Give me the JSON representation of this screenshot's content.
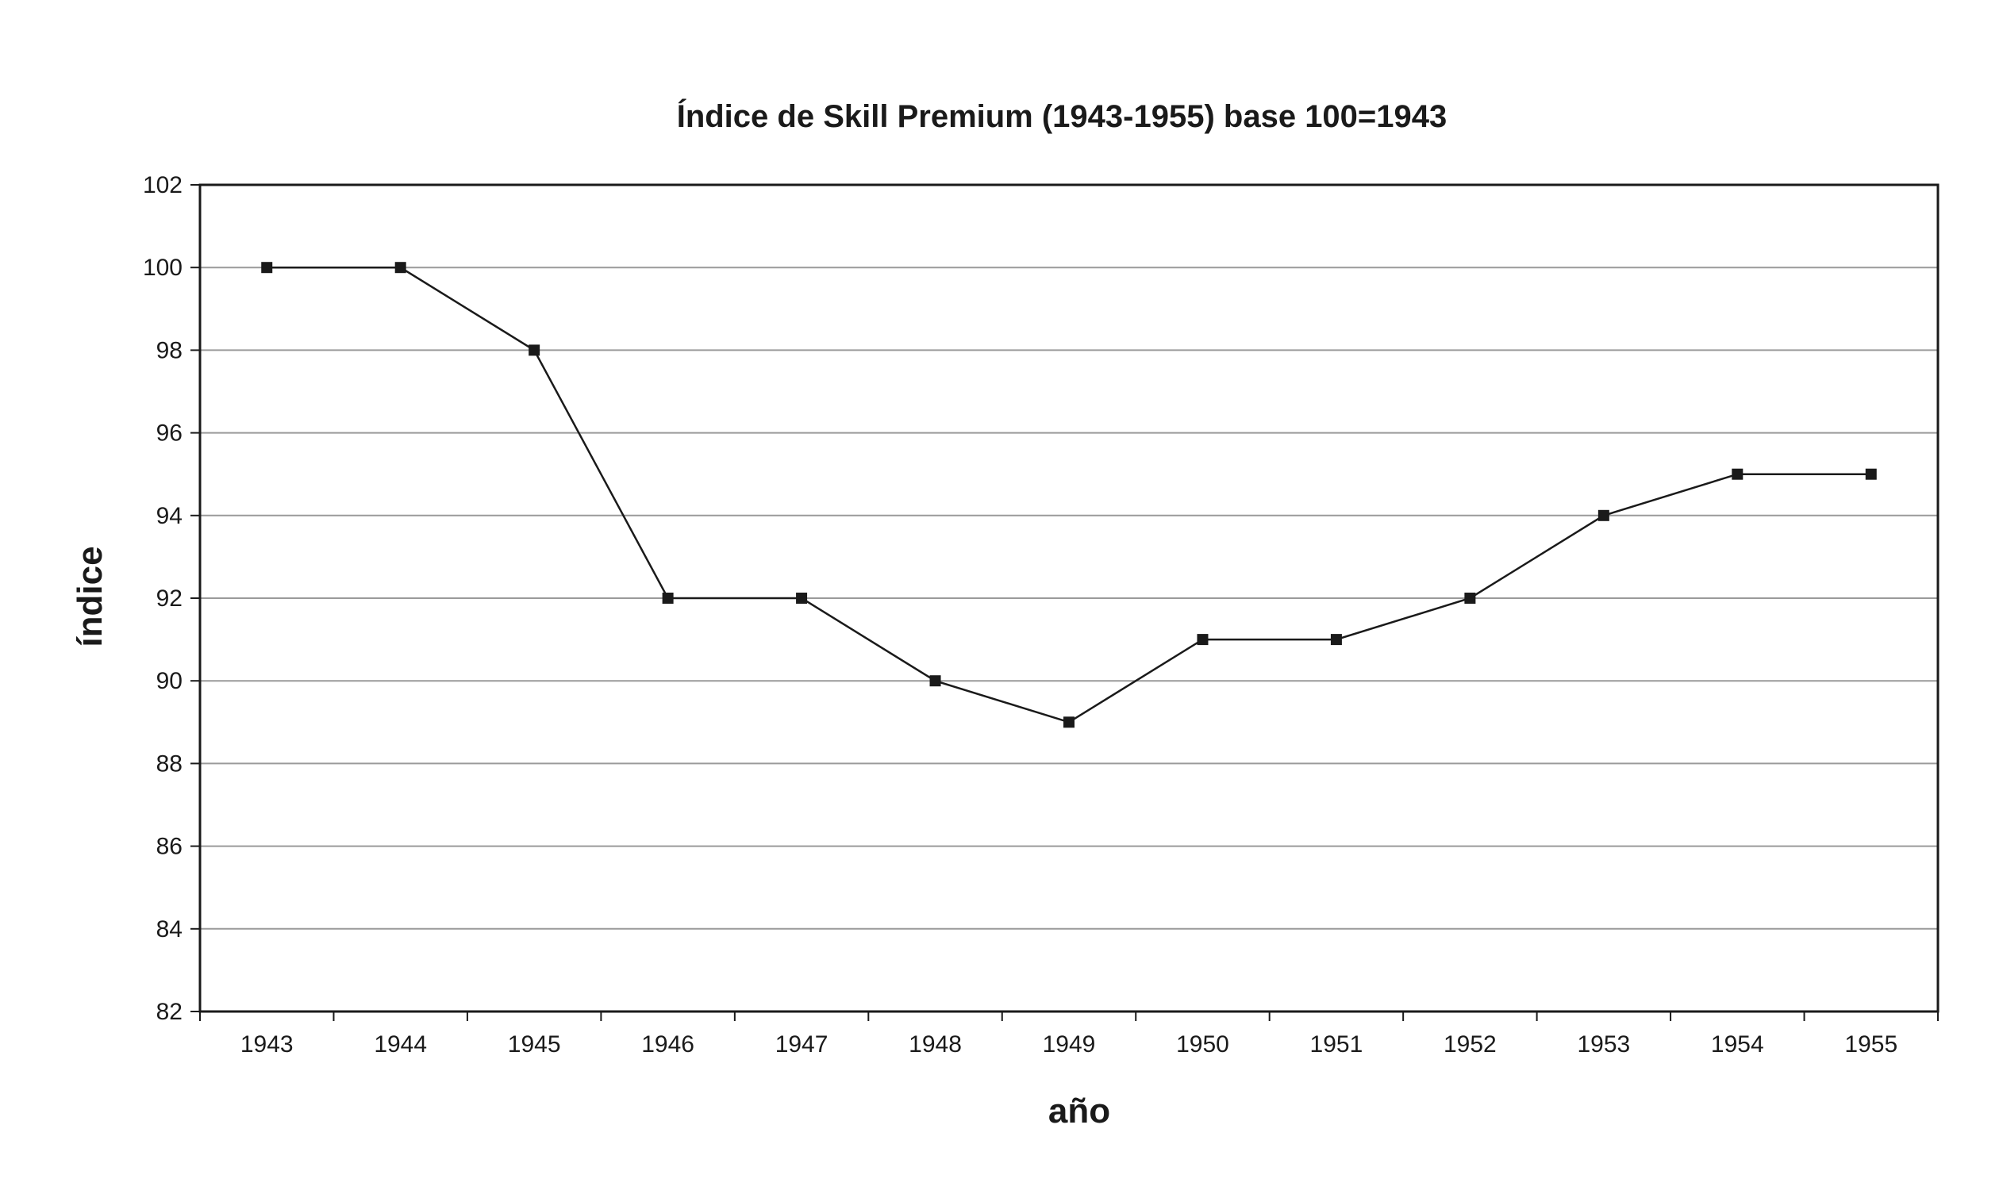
{
  "chart_data": {
    "type": "line",
    "title": "Índice de Skill Premium (1943-1955) base 100=1943",
    "xlabel": "año",
    "ylabel": "índice",
    "categories": [
      "1943",
      "1944",
      "1945",
      "1946",
      "1947",
      "1948",
      "1949",
      "1950",
      "1951",
      "1952",
      "1953",
      "1954",
      "1955"
    ],
    "series": [
      {
        "values": [
          100,
          100,
          98,
          92,
          92,
          90,
          89,
          91,
          91,
          92,
          94,
          95,
          95
        ]
      }
    ],
    "ylim": [
      82,
      102
    ],
    "yticks": [
      "82",
      "84",
      "86",
      "88",
      "90",
      "92",
      "94",
      "96",
      "98",
      "100",
      "102"
    ],
    "grid": true,
    "legend": "none",
    "colors": {
      "line": "#1a1a1a",
      "marker": "#1a1a1a",
      "grid": "#9a9a9a",
      "frame": "#1a1a1a"
    }
  }
}
